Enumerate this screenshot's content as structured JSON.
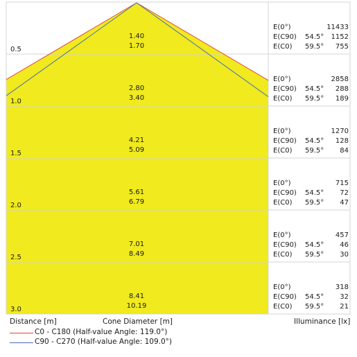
{
  "chart_data": {
    "type": "cone-diagram",
    "colors": {
      "fill": "#f0ea1e",
      "grid": "#d4d4d4",
      "c0_c180": "#e0473c",
      "c90_c270": "#4a6ab8"
    },
    "rows": [
      {
        "distance": "0.5",
        "cone_c90": "1.40",
        "cone_c0": "1.70",
        "e0": "11433",
        "angle_c90": "54.5°",
        "e_c90": "1152",
        "angle_c0": "59.5°",
        "e_c0": "755"
      },
      {
        "distance": "1.0",
        "cone_c90": "2.80",
        "cone_c0": "3.40",
        "e0": "2858",
        "angle_c90": "54.5°",
        "e_c90": "288",
        "angle_c0": "59.5°",
        "e_c0": "189"
      },
      {
        "distance": "1.5",
        "cone_c90": "4.21",
        "cone_c0": "5.09",
        "e0": "1270",
        "angle_c90": "54.5°",
        "e_c90": "128",
        "angle_c0": "59.5°",
        "e_c0": "84"
      },
      {
        "distance": "2.0",
        "cone_c90": "5.61",
        "cone_c0": "6.79",
        "e0": "715",
        "angle_c90": "54.5°",
        "e_c90": "72",
        "angle_c0": "59.5°",
        "e_c0": "47"
      },
      {
        "distance": "2.5",
        "cone_c90": "7.01",
        "cone_c0": "8.49",
        "e0": "457",
        "angle_c90": "54.5°",
        "e_c90": "46",
        "angle_c0": "59.5°",
        "e_c0": "30"
      },
      {
        "distance": "3.0",
        "cone_c90": "8.41",
        "cone_c0": "10.19",
        "e0": "318",
        "angle_c90": "54.5°",
        "e_c90": "32",
        "angle_c0": "59.5°",
        "e_c0": "21"
      }
    ],
    "e_labels": {
      "e0": "E(0°)",
      "e_c90": "E(C90)",
      "e_c0": "E(C0)"
    },
    "xlabel": "Distance [m]",
    "center_label": "Cone Diameter [m]",
    "right_label": "Illuminance [lx]",
    "legend": [
      {
        "name": "C0 - C180 (Half-value Angle: 119.0°)",
        "color": "#e0473c",
        "half_angle_deg": 119.0
      },
      {
        "name": "C90 - C270 (Half-value Angle: 109.0°)",
        "color": "#4a6ab8",
        "half_angle_deg": 109.0
      }
    ]
  }
}
